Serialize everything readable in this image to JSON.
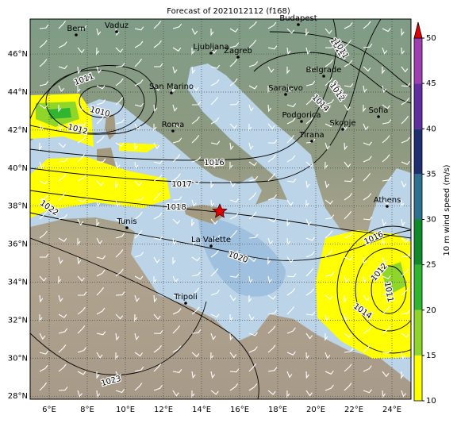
{
  "title": "Forecast of 2021012112 (f168)",
  "cities": [
    "Bern",
    "Vaduz",
    "Budapest",
    "Ljubljana",
    "Zagreb",
    "San Marino",
    "Belgrade",
    "Sarajevo",
    "Sofia",
    "Podgorica",
    "Skopje",
    "Roma",
    "Tirana",
    "Athens",
    "Tunis",
    "La Valette",
    "Tripoli"
  ],
  "isobars": [
    "1011",
    "1010",
    "1012",
    "1016",
    "1017",
    "1018",
    "1022",
    "1020",
    "1023",
    "1011",
    "1012",
    "1014",
    "1016",
    "1012",
    "1014",
    "1011",
    "1012",
    "1014"
  ],
  "axes": {
    "xticks": [
      {
        "value": 6,
        "label": "6°E"
      },
      {
        "value": 8,
        "label": "8°E"
      },
      {
        "value": 10,
        "label": "10°E"
      },
      {
        "value": 12,
        "label": "12°E"
      },
      {
        "value": 14,
        "label": "14°E"
      },
      {
        "value": 16,
        "label": "16°E"
      },
      {
        "value": 18,
        "label": "18°E"
      },
      {
        "value": 20,
        "label": "20°E"
      },
      {
        "value": 22,
        "label": "22°E"
      },
      {
        "value": 24,
        "label": "24°E"
      }
    ],
    "yticks": [
      {
        "value": 28,
        "label": "28°N"
      },
      {
        "value": 30,
        "label": "30°N"
      },
      {
        "value": 32,
        "label": "32°N"
      },
      {
        "value": 34,
        "label": "34°N"
      },
      {
        "value": 36,
        "label": "36°N"
      },
      {
        "value": 38,
        "label": "38°N"
      },
      {
        "value": 40,
        "label": "40°N"
      },
      {
        "value": 42,
        "label": "42°N"
      },
      {
        "value": 44,
        "label": "44°N"
      },
      {
        "value": 46,
        "label": "46°N"
      }
    ]
  },
  "colorbar": {
    "label": "10 m wind speed (m/s)",
    "ticks": [
      10,
      15,
      20,
      25,
      30,
      35,
      40,
      45,
      50
    ],
    "colors": [
      "#ffff00",
      "#8fd62a",
      "#2fb52f",
      "#0f8a2a",
      "#2f6f8f",
      "#1f2f6f",
      "#5f2f9f",
      "#a040b0"
    ],
    "extend_color": "#e00000"
  }
}
